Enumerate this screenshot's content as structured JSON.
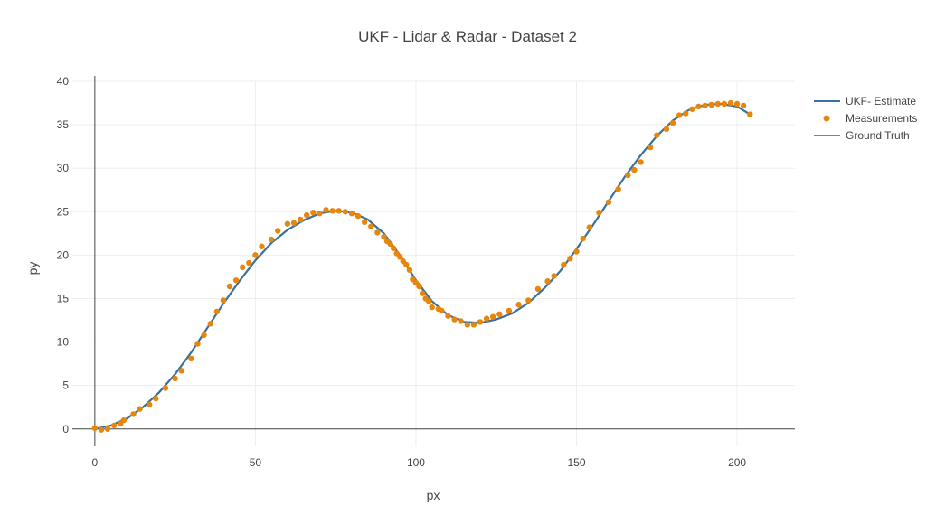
{
  "chart_data": {
    "type": "line",
    "title": "UKF - Lidar & Radar - Dataset 2",
    "xlabel": "px",
    "ylabel": "py",
    "xlim": [
      -7,
      218
    ],
    "ylim": [
      -2,
      40
    ],
    "xticks": [
      0,
      50,
      100,
      150,
      200
    ],
    "yticks": [
      0,
      5,
      10,
      15,
      20,
      25,
      30,
      35,
      40
    ],
    "grid": true,
    "legend_position": "top-right",
    "series": [
      {
        "name": "UKF- Estimate",
        "type": "line",
        "color": "#3b6fa8",
        "x": [
          0,
          5,
          10,
          15,
          20,
          25,
          30,
          35,
          40,
          45,
          50,
          55,
          60,
          65,
          70,
          75,
          80,
          85,
          90,
          95,
          100,
          105,
          110,
          115,
          120,
          125,
          130,
          135,
          140,
          145,
          150,
          155,
          160,
          165,
          170,
          175,
          180,
          185,
          190,
          195,
          200,
          204
        ],
        "y": [
          0,
          0.4,
          1.2,
          2.5,
          4.2,
          6.3,
          8.8,
          11.6,
          14.4,
          17.0,
          19.4,
          21.4,
          22.9,
          24.0,
          24.8,
          25.1,
          24.9,
          24.1,
          22.5,
          20.0,
          17.1,
          14.7,
          13.1,
          12.3,
          12.2,
          12.6,
          13.3,
          14.5,
          16.2,
          18.2,
          20.7,
          23.4,
          26.2,
          29.0,
          31.5,
          33.7,
          35.5,
          36.7,
          37.3,
          37.4,
          37.1,
          36.2
        ]
      },
      {
        "name": "Measurements",
        "type": "scatter",
        "color": "#e8860c",
        "x": [
          0,
          2,
          4,
          6,
          8,
          9,
          12,
          14,
          17,
          19,
          22,
          25,
          27,
          30,
          32,
          34,
          36,
          38,
          40,
          42,
          44,
          46,
          48,
          50,
          52,
          55,
          57,
          60,
          62,
          64,
          66,
          68,
          70,
          72,
          74,
          76,
          78,
          80,
          82,
          84,
          86,
          88,
          90,
          91,
          92,
          93,
          94,
          95,
          96,
          97,
          98,
          99,
          100,
          101,
          102,
          103,
          104,
          105,
          107,
          108,
          110,
          112,
          114,
          116,
          118,
          120,
          122,
          124,
          126,
          129,
          132,
          135,
          138,
          141,
          143,
          146,
          148,
          150,
          152,
          154,
          157,
          160,
          163,
          166,
          168,
          170,
          173,
          175,
          178,
          180,
          182,
          184,
          186,
          188,
          190,
          192,
          194,
          196,
          198,
          200,
          202,
          204
        ],
        "y": [
          0.1,
          -0.1,
          0.0,
          0.4,
          0.6,
          1.0,
          1.7,
          2.3,
          2.8,
          3.5,
          4.7,
          5.8,
          6.7,
          8.1,
          9.8,
          10.8,
          12.1,
          13.5,
          14.8,
          16.4,
          17.1,
          18.6,
          19.1,
          20.0,
          21.0,
          21.8,
          22.8,
          23.6,
          23.7,
          24.1,
          24.6,
          24.9,
          24.8,
          25.2,
          25.1,
          25.1,
          25.0,
          24.8,
          24.5,
          23.8,
          23.3,
          22.6,
          22.1,
          21.6,
          21.3,
          20.8,
          20.2,
          19.8,
          19.3,
          18.9,
          18.3,
          17.2,
          16.8,
          16.4,
          15.6,
          15.0,
          14.7,
          14.0,
          13.8,
          13.6,
          13.0,
          12.6,
          12.4,
          12.0,
          12.0,
          12.3,
          12.7,
          12.9,
          13.2,
          13.6,
          14.3,
          14.8,
          16.1,
          17.0,
          17.6,
          18.9,
          19.6,
          20.4,
          21.9,
          23.2,
          24.9,
          26.1,
          27.6,
          29.2,
          29.8,
          30.7,
          32.4,
          33.8,
          34.5,
          35.2,
          36.1,
          36.3,
          36.8,
          37.1,
          37.2,
          37.3,
          37.4,
          37.4,
          37.5,
          37.4,
          37.2,
          36.2
        ]
      },
      {
        "name": "Ground Truth",
        "type": "line",
        "color": "#5fa14b",
        "x": [
          0,
          5,
          10,
          15,
          20,
          25,
          30,
          35,
          40,
          45,
          50,
          55,
          60,
          65,
          70,
          75,
          80,
          85,
          90,
          95,
          100,
          105,
          110,
          115,
          120,
          125,
          130,
          135,
          140,
          145,
          150,
          155,
          160,
          165,
          170,
          175,
          180,
          185,
          190,
          195,
          200,
          204
        ],
        "y": [
          0,
          0.4,
          1.2,
          2.5,
          4.2,
          6.3,
          8.8,
          11.6,
          14.4,
          17.0,
          19.4,
          21.4,
          22.9,
          24.0,
          24.8,
          25.1,
          24.9,
          24.1,
          22.5,
          20.0,
          17.1,
          14.7,
          13.1,
          12.3,
          12.2,
          12.6,
          13.3,
          14.5,
          16.2,
          18.2,
          20.7,
          23.4,
          26.2,
          29.0,
          31.5,
          33.7,
          35.5,
          36.7,
          37.3,
          37.4,
          37.1,
          36.2
        ]
      }
    ]
  }
}
